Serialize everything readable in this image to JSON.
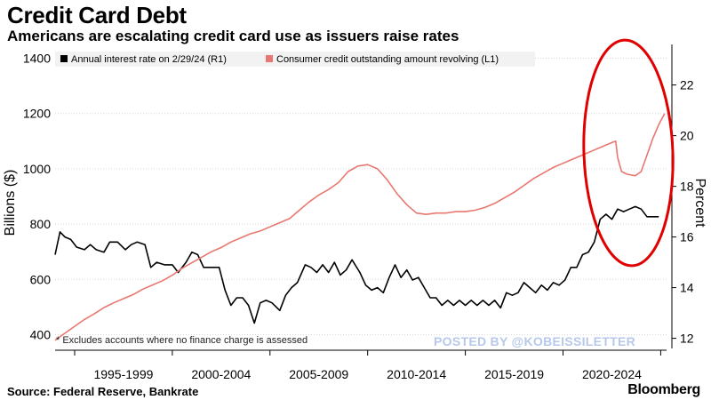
{
  "header": {
    "title": "Credit Card Debt",
    "subtitle": "Americans are escalating credit card use as issuers raise rates"
  },
  "footer": {
    "source": "Source: Federal Reserve, Bankrate",
    "brand": "Bloomberg",
    "footnote": "* Excludes accounts where no finance charge is assessed",
    "watermark": "POSTED BY @KOBEISSILETTER"
  },
  "colors": {
    "rate_line": "#000000",
    "credit_line": "#e8776f",
    "annotation": "#e00000",
    "grid": "#d8d8d8"
  },
  "chart_data": {
    "type": "line",
    "title": "Credit Card Debt",
    "x_range": [
      1994.0,
      2025.3
    ],
    "xtick_labels": [
      "1995-1999",
      "2000-2004",
      "2005-2009",
      "2010-2014",
      "2015-2019",
      "2020-2024"
    ],
    "xtick_centers": [
      1997.5,
      2002.5,
      2007.5,
      2012.5,
      2017.5,
      2022.5
    ],
    "left_axis": {
      "label": "Billions ($)",
      "ylim": [
        350,
        1450
      ],
      "ticks": [
        400,
        600,
        800,
        1000,
        1200,
        1400
      ]
    },
    "right_axis": {
      "label": "Percent",
      "ylim": [
        11.6,
        23.6
      ],
      "ticks": [
        12,
        14,
        16,
        18,
        20,
        22
      ]
    },
    "legend_position": "top-left",
    "series": [
      {
        "name": "Annual interest rate on 2/29/24 (R1)",
        "axis": "right",
        "points": [
          [
            1994.0,
            15.3
          ],
          [
            1994.25,
            16.2
          ],
          [
            1994.5,
            16.0
          ],
          [
            1994.8,
            15.9
          ],
          [
            1995.1,
            15.6
          ],
          [
            1995.5,
            15.5
          ],
          [
            1995.8,
            15.7
          ],
          [
            1996.1,
            15.5
          ],
          [
            1996.5,
            15.4
          ],
          [
            1996.8,
            15.8
          ],
          [
            1997.2,
            15.8
          ],
          [
            1997.6,
            15.5
          ],
          [
            1997.9,
            15.7
          ],
          [
            1998.2,
            15.8
          ],
          [
            1998.6,
            15.7
          ],
          [
            1998.9,
            14.8
          ],
          [
            1999.2,
            15.0
          ],
          [
            1999.6,
            14.9
          ],
          [
            2000.0,
            14.9
          ],
          [
            2000.3,
            14.6
          ],
          [
            2000.7,
            15.0
          ],
          [
            2001.0,
            15.4
          ],
          [
            2001.3,
            15.3
          ],
          [
            2001.6,
            14.8
          ],
          [
            2002.0,
            14.8
          ],
          [
            2002.4,
            14.8
          ],
          [
            2002.7,
            13.9
          ],
          [
            2003.0,
            13.3
          ],
          [
            2003.3,
            13.6
          ],
          [
            2003.6,
            13.6
          ],
          [
            2003.9,
            13.3
          ],
          [
            2004.2,
            12.6
          ],
          [
            2004.5,
            13.4
          ],
          [
            2004.8,
            13.5
          ],
          [
            2005.1,
            13.4
          ],
          [
            2005.5,
            13.1
          ],
          [
            2005.8,
            13.7
          ],
          [
            2006.1,
            14.0
          ],
          [
            2006.4,
            14.2
          ],
          [
            2006.8,
            14.9
          ],
          [
            2007.1,
            14.8
          ],
          [
            2007.4,
            14.6
          ],
          [
            2007.7,
            14.9
          ],
          [
            2008.0,
            14.6
          ],
          [
            2008.3,
            15.0
          ],
          [
            2008.6,
            14.5
          ],
          [
            2008.9,
            14.7
          ],
          [
            2009.2,
            15.1
          ],
          [
            2009.6,
            14.6
          ],
          [
            2009.9,
            14.1
          ],
          [
            2010.2,
            13.9
          ],
          [
            2010.5,
            14.0
          ],
          [
            2010.8,
            13.8
          ],
          [
            2011.1,
            14.4
          ],
          [
            2011.4,
            14.9
          ],
          [
            2011.7,
            14.4
          ],
          [
            2012.0,
            14.7
          ],
          [
            2012.3,
            14.3
          ],
          [
            2012.6,
            14.4
          ],
          [
            2012.9,
            14.0
          ],
          [
            2013.2,
            13.6
          ],
          [
            2013.5,
            13.6
          ],
          [
            2013.8,
            13.3
          ],
          [
            2014.1,
            13.5
          ],
          [
            2014.4,
            13.3
          ],
          [
            2014.7,
            13.5
          ],
          [
            2015.0,
            13.3
          ],
          [
            2015.3,
            13.5
          ],
          [
            2015.6,
            13.3
          ],
          [
            2015.9,
            13.5
          ],
          [
            2016.2,
            13.3
          ],
          [
            2016.5,
            13.5
          ],
          [
            2016.8,
            13.2
          ],
          [
            2017.1,
            13.8
          ],
          [
            2017.4,
            13.7
          ],
          [
            2017.7,
            13.8
          ],
          [
            2018.0,
            14.2
          ],
          [
            2018.3,
            14.0
          ],
          [
            2018.6,
            13.8
          ],
          [
            2018.9,
            14.1
          ],
          [
            2019.2,
            13.9
          ],
          [
            2019.5,
            14.2
          ],
          [
            2019.8,
            14.1
          ],
          [
            2020.1,
            14.3
          ],
          [
            2020.4,
            14.8
          ],
          [
            2020.7,
            14.8
          ],
          [
            2021.0,
            15.3
          ],
          [
            2021.3,
            15.4
          ],
          [
            2021.6,
            15.8
          ],
          [
            2021.9,
            16.7
          ],
          [
            2022.2,
            16.9
          ],
          [
            2022.5,
            16.7
          ],
          [
            2022.8,
            17.1
          ],
          [
            2023.1,
            17.0
          ],
          [
            2023.4,
            17.1
          ],
          [
            2023.7,
            17.2
          ],
          [
            2024.0,
            17.1
          ],
          [
            2024.3,
            16.8
          ],
          [
            2024.6,
            16.8
          ],
          [
            2024.9,
            16.8
          ]
        ]
      },
      {
        "name": "Consumer credit outstanding amount revolving (L1)",
        "axis": "left",
        "points": [
          [
            1994.0,
            380
          ],
          [
            1994.5,
            405
          ],
          [
            1995.0,
            430
          ],
          [
            1995.5,
            455
          ],
          [
            1996.0,
            475
          ],
          [
            1996.5,
            498
          ],
          [
            1997.0,
            515
          ],
          [
            1997.5,
            530
          ],
          [
            1998.0,
            545
          ],
          [
            1998.5,
            565
          ],
          [
            1999.0,
            580
          ],
          [
            1999.5,
            595
          ],
          [
            2000.0,
            615
          ],
          [
            2000.5,
            640
          ],
          [
            2001.0,
            660
          ],
          [
            2001.5,
            680
          ],
          [
            2002.0,
            700
          ],
          [
            2002.5,
            715
          ],
          [
            2003.0,
            735
          ],
          [
            2003.5,
            750
          ],
          [
            2004.0,
            765
          ],
          [
            2004.5,
            775
          ],
          [
            2005.0,
            790
          ],
          [
            2005.5,
            805
          ],
          [
            2006.0,
            820
          ],
          [
            2006.5,
            850
          ],
          [
            2007.0,
            880
          ],
          [
            2007.5,
            905
          ],
          [
            2008.0,
            925
          ],
          [
            2008.5,
            950
          ],
          [
            2009.0,
            990
          ],
          [
            2009.5,
            1010
          ],
          [
            2010.0,
            1015
          ],
          [
            2010.5,
            1000
          ],
          [
            2011.0,
            960
          ],
          [
            2011.5,
            910
          ],
          [
            2012.0,
            870
          ],
          [
            2012.5,
            840
          ],
          [
            2013.0,
            835
          ],
          [
            2013.5,
            840
          ],
          [
            2014.0,
            840
          ],
          [
            2014.5,
            845
          ],
          [
            2015.0,
            845
          ],
          [
            2015.5,
            850
          ],
          [
            2016.0,
            860
          ],
          [
            2016.5,
            875
          ],
          [
            2017.0,
            895
          ],
          [
            2017.5,
            915
          ],
          [
            2018.0,
            940
          ],
          [
            2018.5,
            965
          ],
          [
            2019.0,
            985
          ],
          [
            2019.5,
            1005
          ],
          [
            2020.0,
            1020
          ],
          [
            2020.5,
            1035
          ],
          [
            2021.0,
            1050
          ],
          [
            2021.5,
            1065
          ],
          [
            2022.0,
            1080
          ],
          [
            2022.5,
            1095
          ],
          [
            2022.7,
            1100
          ],
          [
            2022.8,
            1040
          ],
          [
            2023.0,
            990
          ],
          [
            2023.3,
            980
          ],
          [
            2023.7,
            975
          ],
          [
            2024.0,
            990
          ],
          [
            2024.3,
            1050
          ],
          [
            2024.6,
            1110
          ],
          [
            2024.9,
            1160
          ],
          [
            2025.2,
            1200
          ]
        ]
      }
    ]
  }
}
